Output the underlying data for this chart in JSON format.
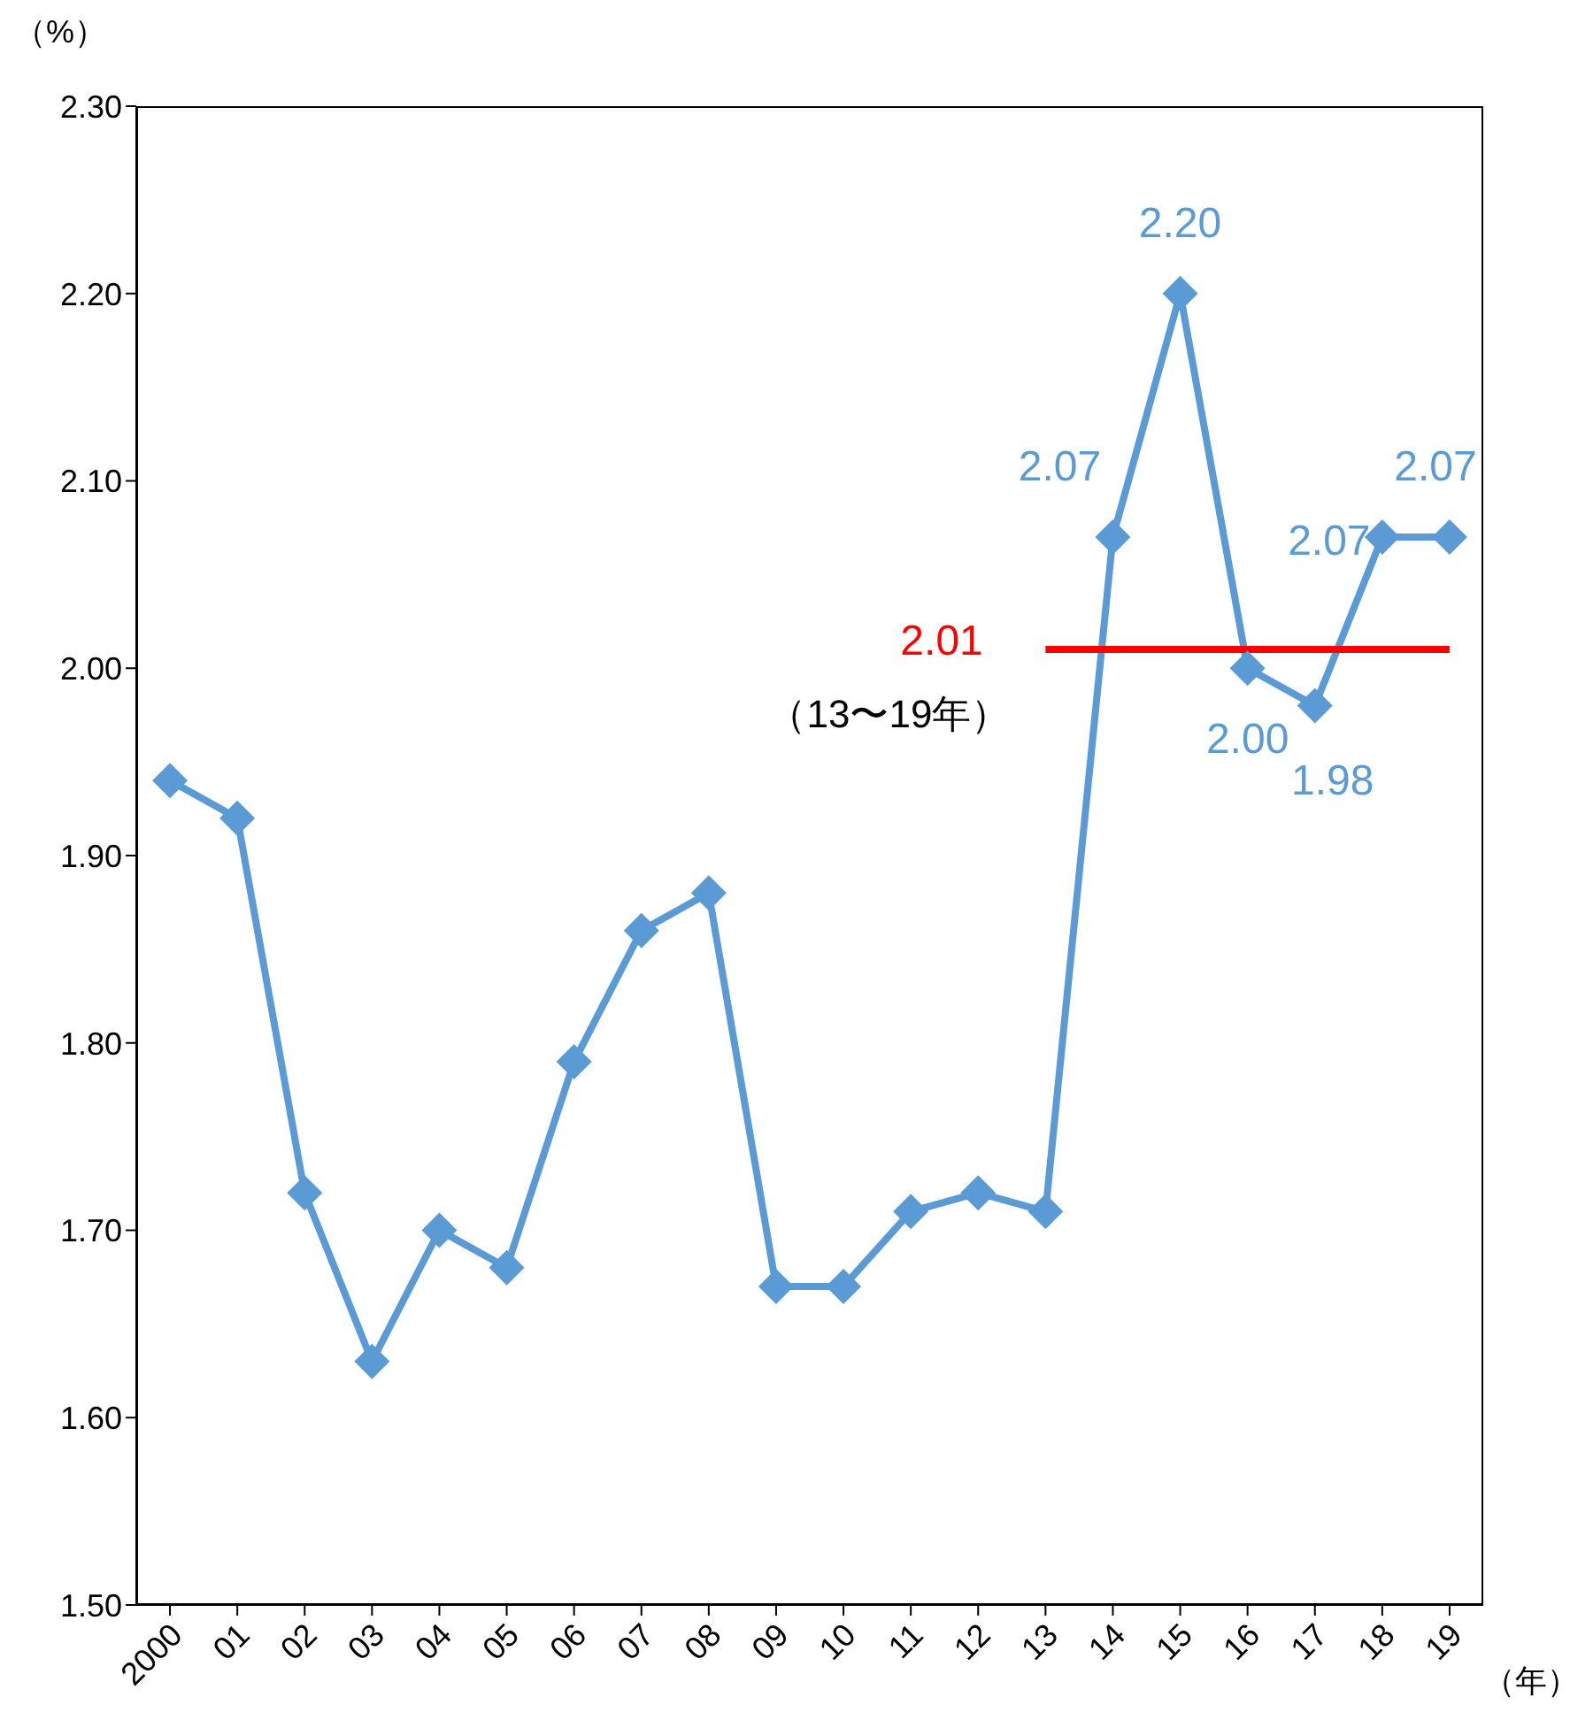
{
  "chart_data": {
    "type": "line",
    "ylabel": "（%）",
    "xlabel": "（年）",
    "categories": [
      "2000",
      "01",
      "02",
      "03",
      "04",
      "05",
      "06",
      "07",
      "08",
      "09",
      "10",
      "11",
      "12",
      "13",
      "14",
      "15",
      "16",
      "17",
      "18",
      "19"
    ],
    "series": [
      {
        "color": "#5b9bd5",
        "marker": "diamond",
        "values": [
          1.94,
          1.92,
          1.72,
          1.63,
          1.7,
          1.68,
          1.79,
          1.86,
          1.88,
          1.67,
          1.67,
          1.71,
          1.72,
          1.71,
          2.07,
          2.2,
          2.0,
          1.98,
          2.07,
          2.07
        ],
        "value_labels": [
          null,
          null,
          null,
          null,
          null,
          null,
          null,
          null,
          null,
          null,
          null,
          null,
          null,
          null,
          "2.07",
          "2.20",
          "2.00",
          "1.98",
          "2.07",
          "2.07"
        ]
      },
      {
        "type": "line",
        "color": "#ff0000",
        "marker": "none",
        "values": [
          null,
          null,
          null,
          null,
          null,
          null,
          null,
          null,
          null,
          null,
          null,
          null,
          null,
          2.01,
          2.01,
          2.01,
          2.01,
          2.01,
          2.01,
          2.01
        ]
      }
    ],
    "annotations": [
      {
        "text": "2.01",
        "x": "13",
        "y": 2.01
      },
      {
        "text": "（13〜19年）",
        "x": "13",
        "y": 2.01
      }
    ],
    "ylim": [
      1.5,
      2.3
    ],
    "yticks": [
      {
        "value": 1.5,
        "label": "1.50"
      },
      {
        "value": 1.6,
        "label": "1.60"
      },
      {
        "value": 1.7,
        "label": "1.70"
      },
      {
        "value": 1.8,
        "label": "1.80"
      },
      {
        "value": 1.9,
        "label": "1.90"
      },
      {
        "value": 2.0,
        "label": "2.00"
      },
      {
        "value": 2.1,
        "label": "2.10"
      },
      {
        "value": 2.2,
        "label": "2.20"
      },
      {
        "value": 2.3,
        "label": "2.30"
      }
    ],
    "grid": false
  }
}
